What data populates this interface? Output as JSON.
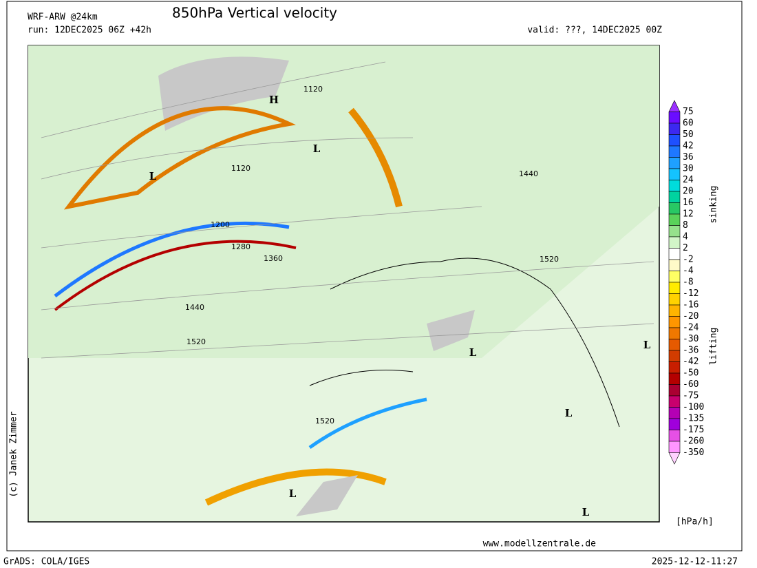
{
  "header": {
    "model": "WRF-ARW @24km",
    "title": "850hPa Vertical velocity",
    "run": "run: 12DEC2025 06Z +42h",
    "valid": "valid: ???, 14DEC2025 00Z"
  },
  "map": {
    "contour_labels": [
      "1120",
      "1120",
      "1440",
      "1200",
      "1280",
      "1360",
      "1520",
      "1440",
      "1520",
      "1520"
    ],
    "pressure_labels": [
      "H",
      "L",
      "L",
      "L",
      "L",
      "L",
      "L",
      "L"
    ]
  },
  "colorbar": {
    "levels": [
      75,
      60,
      50,
      42,
      36,
      30,
      24,
      20,
      16,
      12,
      8,
      4,
      2,
      -2,
      -4,
      -8,
      -12,
      -16,
      -20,
      -24,
      -30,
      -36,
      -42,
      -50,
      -60,
      -75,
      -100,
      -135,
      -175,
      -260,
      -350
    ],
    "colors": [
      "#9b30ff",
      "#6a0dff",
      "#3c28f0",
      "#1e50ff",
      "#1e78ff",
      "#1ea0ff",
      "#14c3ff",
      "#00dcdc",
      "#00d2a0",
      "#28c864",
      "#5ad25a",
      "#96e18c",
      "#d2f5c8",
      "#ffffff",
      "#fffac8",
      "#ffff64",
      "#ffeb00",
      "#ffd200",
      "#ffb400",
      "#ff9600",
      "#f07800",
      "#e65a00",
      "#d23c00",
      "#c81e00",
      "#b40000",
      "#aa0032",
      "#c8006e",
      "#b400b4",
      "#a000dc",
      "#e650e6",
      "#ff96ff",
      "#ffd2ff"
    ],
    "upper_label": "sinking",
    "lower_label": "lifting",
    "unit": "[hPa/h]"
  },
  "footer": {
    "website": "www.modellzentrale.de",
    "copyright": "(c) Janek Zimmer",
    "software": "GrADS: COLA/IGES",
    "timestamp": "2025-12-12-11:27"
  }
}
